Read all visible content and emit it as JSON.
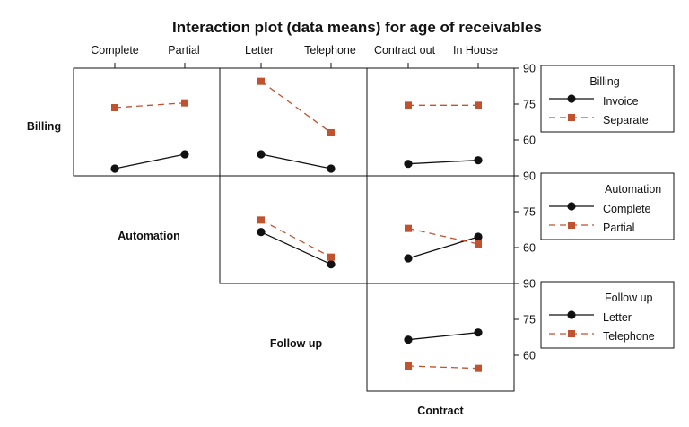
{
  "chart_data": {
    "type": "line",
    "title": "Interaction plot (data means) for age of receivables",
    "factors": [
      {
        "name": "Billing",
        "levels": [
          "Invoice",
          "Separate"
        ]
      },
      {
        "name": "Automation",
        "levels": [
          "Complete",
          "Partial"
        ]
      },
      {
        "name": "Follow up",
        "levels": [
          "Letter",
          "Telephone"
        ]
      },
      {
        "name": "Contract",
        "levels": [
          "Contract out",
          "In House"
        ]
      }
    ],
    "ylim": [
      45,
      90
    ],
    "yticks": [
      90,
      75,
      60
    ],
    "panels": [
      {
        "row": 0,
        "col": 0,
        "x_factor": "Automation",
        "trace_factor": "Billing",
        "x": [
          "Complete",
          "Partial"
        ],
        "series": [
          {
            "name": "Invoice",
            "values": [
              48.0,
              54.0
            ]
          },
          {
            "name": "Separate",
            "values": [
              73.5,
              75.5
            ]
          }
        ]
      },
      {
        "row": 0,
        "col": 1,
        "x_factor": "Follow up",
        "trace_factor": "Billing",
        "x": [
          "Letter",
          "Telephone"
        ],
        "series": [
          {
            "name": "Invoice",
            "values": [
              54.0,
              48.0
            ]
          },
          {
            "name": "Separate",
            "values": [
              84.5,
              63.0
            ]
          }
        ]
      },
      {
        "row": 0,
        "col": 2,
        "x_factor": "Contract",
        "trace_factor": "Billing",
        "x": [
          "Contract out",
          "In House"
        ],
        "series": [
          {
            "name": "Invoice",
            "values": [
              50.0,
              51.5
            ]
          },
          {
            "name": "Separate",
            "values": [
              74.5,
              74.5
            ]
          }
        ]
      },
      {
        "row": 1,
        "col": 1,
        "x_factor": "Follow up",
        "trace_factor": "Automation",
        "x": [
          "Letter",
          "Telephone"
        ],
        "series": [
          {
            "name": "Complete",
            "values": [
              66.5,
              53.0
            ]
          },
          {
            "name": "Partial",
            "values": [
              71.5,
              56.0
            ]
          }
        ]
      },
      {
        "row": 1,
        "col": 2,
        "x_factor": "Contract",
        "trace_factor": "Automation",
        "x": [
          "Contract out",
          "In House"
        ],
        "series": [
          {
            "name": "Complete",
            "values": [
              55.5,
              64.5
            ]
          },
          {
            "name": "Partial",
            "values": [
              68.0,
              61.5
            ]
          }
        ]
      },
      {
        "row": 2,
        "col": 2,
        "x_factor": "Contract",
        "trace_factor": "Follow up",
        "x": [
          "Contract out",
          "In House"
        ],
        "series": [
          {
            "name": "Letter",
            "values": [
              66.5,
              69.5
            ]
          },
          {
            "name": "Telephone",
            "values": [
              55.5,
              54.5
            ]
          }
        ]
      }
    ],
    "column_labels": [
      "Complete",
      "Partial",
      "Letter",
      "Telephone",
      "Contract out",
      "In House"
    ],
    "row_labels": [
      "Billing",
      "Automation",
      "Follow up"
    ],
    "bottom_label": "Contract",
    "legends": [
      {
        "title": "Billing",
        "items": [
          "Invoice",
          "Separate"
        ]
      },
      {
        "title": "Automation",
        "items": [
          "Complete",
          "Partial"
        ]
      },
      {
        "title": "Follow up",
        "items": [
          "Letter",
          "Telephone"
        ]
      }
    ],
    "series_styles": [
      {
        "color": "#111111",
        "marker": "circle",
        "dash": "solid"
      },
      {
        "color": "#c0522f",
        "marker": "square",
        "dash": "dashed"
      }
    ]
  }
}
